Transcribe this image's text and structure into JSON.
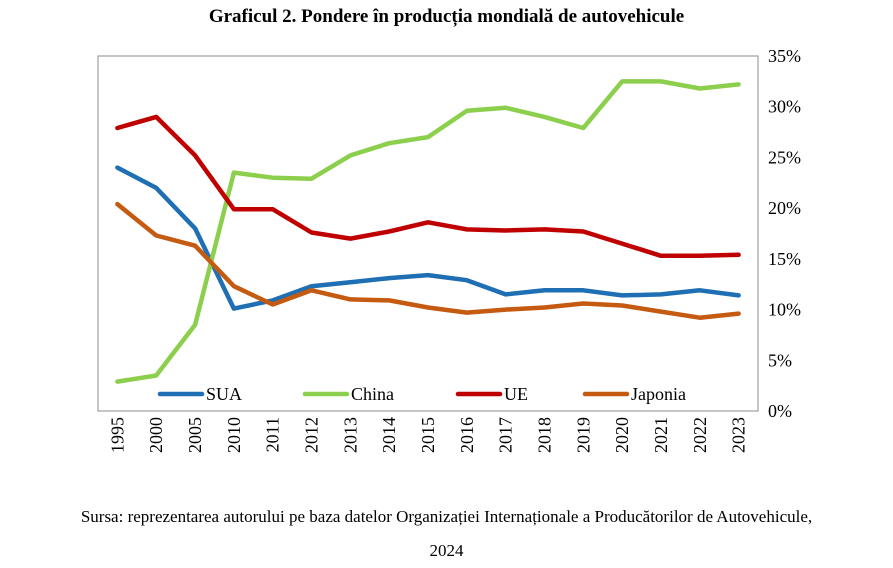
{
  "title": "Graficul 2. Pondere în producția mondială de autovehicule",
  "source": {
    "line1": "Sursa: reprezentarea autorului pe baza datelor Organizației Internaționale a Producătorilor de Autovehicule,",
    "line2": "2024"
  },
  "chart_data": {
    "type": "line",
    "categories": [
      "1995",
      "2000",
      "2005",
      "2010",
      "2011",
      "2012",
      "2013",
      "2014",
      "2015",
      "2016",
      "2017",
      "2018",
      "2019",
      "2020",
      "2021",
      "2022",
      "2023"
    ],
    "ylim": [
      0,
      35
    ],
    "yticks": [
      "0%",
      "5%",
      "10%",
      "15%",
      "20%",
      "25%",
      "30%",
      "35%"
    ],
    "y_axis_side": "right",
    "legend_position": "bottom-inside",
    "grid": false,
    "series": [
      {
        "name": "SUA",
        "color": "#1F6FB5",
        "values": [
          24.0,
          22.0,
          18.0,
          10.1,
          10.9,
          12.3,
          12.7,
          13.1,
          13.4,
          12.9,
          11.5,
          11.9,
          11.9,
          11.4,
          11.5,
          11.9,
          11.4
        ]
      },
      {
        "name": "China",
        "color": "#8CCF4D",
        "values": [
          2.9,
          3.5,
          8.5,
          23.5,
          23.0,
          22.9,
          25.2,
          26.4,
          27.0,
          29.6,
          29.9,
          29.0,
          27.9,
          32.5,
          32.5,
          31.8,
          32.2
        ]
      },
      {
        "name": "UE",
        "color": "#C00000",
        "values": [
          27.9,
          29.0,
          25.2,
          19.9,
          19.9,
          17.6,
          17.0,
          17.7,
          18.6,
          17.9,
          17.8,
          17.9,
          17.7,
          16.5,
          15.3,
          15.3,
          15.4
        ]
      },
      {
        "name": "Japonia",
        "color": "#C55A11",
        "values": [
          20.4,
          17.3,
          16.3,
          12.3,
          10.5,
          11.9,
          11.0,
          10.9,
          10.2,
          9.7,
          10.0,
          10.2,
          10.6,
          10.4,
          9.8,
          9.2,
          9.6
        ]
      }
    ]
  }
}
